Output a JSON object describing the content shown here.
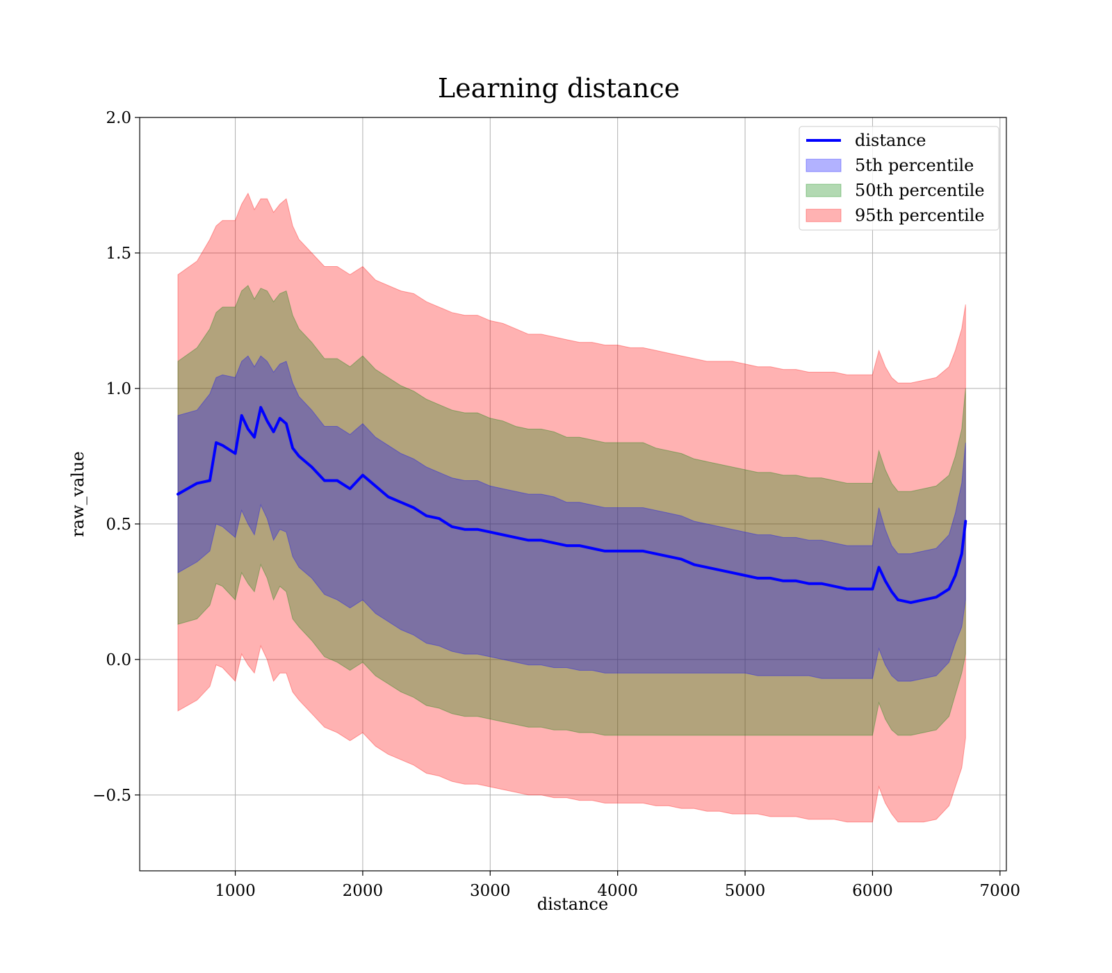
{
  "chart_data": {
    "type": "line",
    "title": "Learning distance",
    "xlabel": "distance",
    "ylabel": "raw_value",
    "xlim": [
      250,
      7050
    ],
    "ylim": [
      -0.78,
      2.0
    ],
    "x_ticks": [
      1000,
      2000,
      3000,
      4000,
      5000,
      6000,
      7000
    ],
    "x_tick_labels": [
      "1000",
      "2000",
      "3000",
      "4000",
      "5000",
      "6000",
      "7000"
    ],
    "y_ticks": [
      -0.5,
      0.0,
      0.5,
      1.0,
      1.5,
      2.0
    ],
    "y_tick_labels": [
      "−0.5",
      "0.0",
      "0.5",
      "1.0",
      "1.5",
      "2.0"
    ],
    "grid": true,
    "legend_position": "top-right",
    "legend": [
      {
        "label": "distance",
        "kind": "line",
        "color": "#0000ff"
      },
      {
        "label": "5th percentile",
        "kind": "band",
        "color": "#0000ff"
      },
      {
        "label": "50th percentile",
        "kind": "band",
        "color": "#008000"
      },
      {
        "label": "95th percentile",
        "kind": "band",
        "color": "#ff0000"
      }
    ],
    "colors": {
      "line": "#0000ff",
      "band_5th": "#0000ff",
      "band_50th": "#008000",
      "band_95th": "#ff0000"
    },
    "x": [
      550,
      700,
      800,
      850,
      900,
      1000,
      1050,
      1100,
      1150,
      1200,
      1250,
      1300,
      1350,
      1400,
      1450,
      1500,
      1600,
      1700,
      1800,
      1900,
      2000,
      2100,
      2200,
      2300,
      2400,
      2500,
      2600,
      2700,
      2800,
      2900,
      3000,
      3100,
      3200,
      3300,
      3400,
      3500,
      3600,
      3700,
      3800,
      3900,
      4000,
      4100,
      4200,
      4300,
      4400,
      4500,
      4600,
      4700,
      4800,
      4900,
      5000,
      5100,
      5200,
      5300,
      5400,
      5500,
      5600,
      5700,
      5800,
      5900,
      6000,
      6050,
      6100,
      6150,
      6200,
      6300,
      6400,
      6500,
      6600,
      6650,
      6700,
      6730
    ],
    "series": [
      {
        "name": "distance",
        "values": [
          0.61,
          0.65,
          0.66,
          0.8,
          0.79,
          0.76,
          0.9,
          0.85,
          0.82,
          0.93,
          0.88,
          0.84,
          0.89,
          0.87,
          0.78,
          0.75,
          0.71,
          0.66,
          0.66,
          0.63,
          0.68,
          0.64,
          0.6,
          0.58,
          0.56,
          0.53,
          0.52,
          0.49,
          0.48,
          0.48,
          0.47,
          0.46,
          0.45,
          0.44,
          0.44,
          0.43,
          0.42,
          0.42,
          0.41,
          0.4,
          0.4,
          0.4,
          0.4,
          0.39,
          0.38,
          0.37,
          0.35,
          0.34,
          0.33,
          0.32,
          0.31,
          0.3,
          0.3,
          0.29,
          0.29,
          0.28,
          0.28,
          0.27,
          0.26,
          0.26,
          0.26,
          0.34,
          0.29,
          0.25,
          0.22,
          0.21,
          0.22,
          0.23,
          0.26,
          0.31,
          0.39,
          0.51
        ]
      }
    ],
    "bands": [
      {
        "name": "95th percentile",
        "upper": [
          1.42,
          1.47,
          1.55,
          1.6,
          1.62,
          1.62,
          1.68,
          1.72,
          1.66,
          1.7,
          1.7,
          1.65,
          1.68,
          1.7,
          1.6,
          1.55,
          1.5,
          1.45,
          1.45,
          1.42,
          1.45,
          1.4,
          1.38,
          1.36,
          1.35,
          1.32,
          1.3,
          1.28,
          1.27,
          1.27,
          1.25,
          1.24,
          1.22,
          1.2,
          1.2,
          1.19,
          1.18,
          1.17,
          1.17,
          1.16,
          1.16,
          1.15,
          1.15,
          1.14,
          1.13,
          1.12,
          1.11,
          1.1,
          1.1,
          1.1,
          1.09,
          1.08,
          1.08,
          1.07,
          1.07,
          1.06,
          1.06,
          1.06,
          1.05,
          1.05,
          1.05,
          1.14,
          1.08,
          1.04,
          1.02,
          1.02,
          1.03,
          1.04,
          1.08,
          1.14,
          1.22,
          1.31
        ],
        "lower": [
          -0.19,
          -0.15,
          -0.1,
          -0.02,
          -0.03,
          -0.08,
          0.02,
          -0.02,
          -0.05,
          0.05,
          0.0,
          -0.08,
          -0.05,
          -0.05,
          -0.12,
          -0.15,
          -0.2,
          -0.25,
          -0.27,
          -0.3,
          -0.27,
          -0.32,
          -0.35,
          -0.37,
          -0.39,
          -0.42,
          -0.43,
          -0.45,
          -0.46,
          -0.46,
          -0.47,
          -0.48,
          -0.49,
          -0.5,
          -0.5,
          -0.51,
          -0.51,
          -0.52,
          -0.52,
          -0.53,
          -0.53,
          -0.53,
          -0.53,
          -0.54,
          -0.54,
          -0.55,
          -0.55,
          -0.56,
          -0.56,
          -0.57,
          -0.57,
          -0.57,
          -0.58,
          -0.58,
          -0.58,
          -0.59,
          -0.59,
          -0.59,
          -0.6,
          -0.6,
          -0.6,
          -0.47,
          -0.53,
          -0.57,
          -0.6,
          -0.6,
          -0.6,
          -0.59,
          -0.54,
          -0.47,
          -0.4,
          -0.29
        ]
      },
      {
        "name": "50th percentile",
        "upper": [
          1.1,
          1.15,
          1.22,
          1.28,
          1.3,
          1.3,
          1.36,
          1.38,
          1.33,
          1.37,
          1.36,
          1.32,
          1.35,
          1.36,
          1.27,
          1.22,
          1.17,
          1.11,
          1.11,
          1.08,
          1.12,
          1.07,
          1.04,
          1.01,
          0.99,
          0.96,
          0.94,
          0.92,
          0.91,
          0.91,
          0.89,
          0.88,
          0.86,
          0.85,
          0.85,
          0.84,
          0.82,
          0.82,
          0.81,
          0.8,
          0.8,
          0.8,
          0.8,
          0.78,
          0.77,
          0.76,
          0.74,
          0.73,
          0.72,
          0.71,
          0.7,
          0.69,
          0.69,
          0.68,
          0.68,
          0.67,
          0.67,
          0.66,
          0.65,
          0.65,
          0.65,
          0.77,
          0.7,
          0.65,
          0.62,
          0.62,
          0.63,
          0.64,
          0.68,
          0.75,
          0.85,
          1.0
        ],
        "lower": [
          0.13,
          0.15,
          0.2,
          0.28,
          0.27,
          0.22,
          0.32,
          0.28,
          0.25,
          0.35,
          0.3,
          0.22,
          0.27,
          0.25,
          0.15,
          0.12,
          0.07,
          0.01,
          -0.01,
          -0.04,
          -0.01,
          -0.06,
          -0.09,
          -0.12,
          -0.14,
          -0.17,
          -0.18,
          -0.2,
          -0.21,
          -0.21,
          -0.22,
          -0.23,
          -0.24,
          -0.25,
          -0.25,
          -0.26,
          -0.26,
          -0.27,
          -0.27,
          -0.28,
          -0.28,
          -0.28,
          -0.28,
          -0.28,
          -0.28,
          -0.28,
          -0.28,
          -0.28,
          -0.28,
          -0.28,
          -0.28,
          -0.28,
          -0.28,
          -0.28,
          -0.28,
          -0.28,
          -0.28,
          -0.28,
          -0.28,
          -0.28,
          -0.28,
          -0.16,
          -0.22,
          -0.26,
          -0.28,
          -0.28,
          -0.27,
          -0.26,
          -0.21,
          -0.13,
          -0.05,
          0.02
        ]
      },
      {
        "name": "5th percentile",
        "upper": [
          0.9,
          0.92,
          0.98,
          1.04,
          1.05,
          1.04,
          1.1,
          1.12,
          1.08,
          1.12,
          1.1,
          1.06,
          1.09,
          1.1,
          1.02,
          0.97,
          0.92,
          0.86,
          0.86,
          0.83,
          0.87,
          0.82,
          0.79,
          0.76,
          0.74,
          0.71,
          0.69,
          0.67,
          0.66,
          0.66,
          0.64,
          0.63,
          0.62,
          0.61,
          0.61,
          0.6,
          0.58,
          0.58,
          0.57,
          0.56,
          0.56,
          0.56,
          0.56,
          0.55,
          0.54,
          0.53,
          0.51,
          0.5,
          0.49,
          0.48,
          0.47,
          0.46,
          0.46,
          0.45,
          0.45,
          0.44,
          0.44,
          0.43,
          0.42,
          0.42,
          0.42,
          0.56,
          0.48,
          0.42,
          0.39,
          0.39,
          0.4,
          0.41,
          0.46,
          0.54,
          0.65,
          0.8
        ],
        "lower": [
          0.32,
          0.36,
          0.4,
          0.5,
          0.49,
          0.45,
          0.55,
          0.5,
          0.46,
          0.57,
          0.52,
          0.44,
          0.48,
          0.47,
          0.38,
          0.34,
          0.3,
          0.24,
          0.22,
          0.19,
          0.22,
          0.17,
          0.14,
          0.11,
          0.09,
          0.06,
          0.05,
          0.03,
          0.02,
          0.02,
          0.01,
          0.0,
          -0.01,
          -0.02,
          -0.02,
          -0.03,
          -0.03,
          -0.04,
          -0.04,
          -0.05,
          -0.05,
          -0.05,
          -0.05,
          -0.05,
          -0.05,
          -0.05,
          -0.05,
          -0.05,
          -0.05,
          -0.05,
          -0.05,
          -0.06,
          -0.06,
          -0.06,
          -0.06,
          -0.06,
          -0.07,
          -0.07,
          -0.07,
          -0.07,
          -0.07,
          0.04,
          -0.02,
          -0.06,
          -0.08,
          -0.08,
          -0.07,
          -0.06,
          -0.01,
          0.06,
          0.12,
          0.22
        ]
      }
    ]
  }
}
